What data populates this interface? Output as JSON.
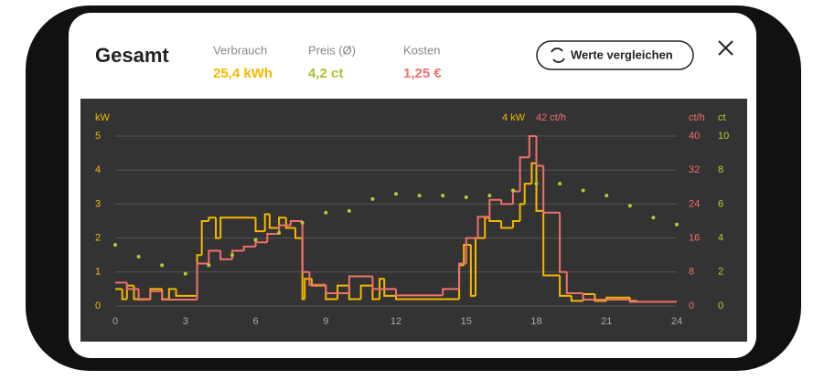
{
  "header": {
    "title": "Gesamt",
    "metrics": [
      {
        "label": "Verbrauch",
        "value": "25,4 kWh",
        "color": "#f5b800"
      },
      {
        "label": "Preis (Ø)",
        "value": "4,2 ct",
        "color": "#a8c232"
      },
      {
        "label": "Kosten",
        "value": "1,25 €",
        "color": "#f0706a"
      }
    ],
    "button": "Werte vergleichen"
  },
  "chart_data": {
    "type": "step",
    "y_label": "kW",
    "y2_label": "ct/h",
    "y3_label": "ct",
    "annotations": [
      "4 kW",
      "42 ct/h"
    ],
    "xlim": [
      0,
      24
    ],
    "xticks": [
      0,
      3,
      6,
      9,
      12,
      15,
      18,
      21,
      24
    ],
    "ylim": [
      0,
      5
    ],
    "yticks": [
      0,
      1,
      2,
      3,
      4,
      5
    ],
    "y2lim": [
      0,
      40
    ],
    "y2ticks": [
      0,
      8,
      16,
      24,
      32,
      40
    ],
    "y3lim": [
      0,
      10
    ],
    "y3ticks": [
      0,
      2,
      4,
      6,
      8,
      10
    ],
    "grid": true,
    "series": [
      {
        "name": "Verbrauch",
        "color": "#f5b800",
        "style": "step",
        "x": [
          0,
          0.3,
          0.5,
          0.8,
          1.5,
          2,
          2.3,
          2.6,
          3.5,
          3.7,
          4,
          4.3,
          4.5,
          6,
          6.4,
          6.6,
          7,
          7.3,
          7.7,
          8,
          8.1,
          8.4,
          9,
          9.5,
          10,
          10.5,
          11,
          11.3,
          11.5,
          12,
          14.7,
          14.9,
          15.2,
          15.4,
          15.8,
          16,
          16.5,
          17,
          17.3,
          17.5,
          17.8,
          18,
          18.3,
          19,
          19.5,
          20,
          20.5,
          21,
          22,
          22.3
        ],
        "values": [
          0.5,
          0.2,
          0.6,
          0.2,
          0.5,
          0.2,
          0.5,
          0.3,
          1.5,
          2.5,
          2.6,
          2.0,
          2.6,
          2.2,
          2.7,
          2.3,
          2.6,
          2.3,
          2.0,
          0.2,
          0.8,
          0.6,
          0.2,
          0.6,
          0.2,
          0.6,
          0.2,
          0.8,
          0.3,
          0.2,
          1.2,
          1.8,
          0.3,
          2.0,
          2.6,
          2.5,
          2.3,
          2.5,
          3.0,
          3.6,
          4.2,
          2.8,
          0.9,
          0.3,
          0.15,
          0.35,
          0.15,
          0.25,
          0.15,
          0.15
        ]
      },
      {
        "name": "Kosten",
        "color": "#f0706a",
        "style": "step",
        "axis": "y2",
        "x": [
          0,
          0.5,
          1,
          1.5,
          2,
          3.5,
          4,
          4.5,
          5,
          5.5,
          6,
          6.5,
          7,
          7.5,
          8,
          8.3,
          9,
          10,
          11,
          12,
          14,
          14.7,
          15,
          15.5,
          16,
          16.5,
          17,
          17.3,
          17.7,
          18,
          18.3,
          19,
          19.3,
          20,
          22,
          24
        ],
        "values": [
          5.5,
          4,
          1.5,
          3.5,
          1.5,
          10,
          13,
          11,
          13,
          14,
          15,
          17,
          19,
          20,
          8,
          5,
          3,
          7,
          4,
          2.5,
          4,
          10,
          16,
          21,
          25,
          24,
          27,
          35,
          40,
          33,
          22,
          8,
          3,
          1.5,
          1,
          1
        ]
      },
      {
        "name": "Preis",
        "color": "#b5c934",
        "style": "dots",
        "axis": "y3",
        "x": [
          0,
          1,
          2,
          3,
          4,
          5,
          6,
          7,
          8,
          9,
          10,
          11,
          12,
          13,
          14,
          15,
          16,
          17,
          18,
          19,
          20,
          21,
          22,
          23,
          24
        ],
        "values": [
          3.6,
          2.9,
          2.4,
          1.9,
          2.4,
          3.0,
          3.9,
          4.3,
          4.9,
          5.5,
          5.6,
          6.3,
          6.6,
          6.5,
          6.5,
          6.4,
          6.5,
          6.8,
          7.2,
          7.2,
          6.8,
          6.5,
          5.9,
          5.2,
          4.8
        ]
      }
    ]
  }
}
